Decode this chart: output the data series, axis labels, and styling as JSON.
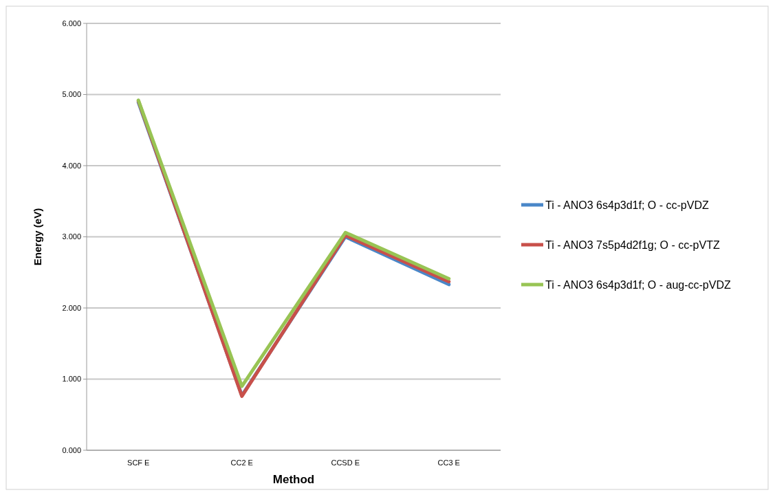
{
  "chart_data": {
    "type": "line",
    "xlabel": "Method",
    "ylabel": "Energy (eV)",
    "categories": [
      "SCF E",
      "CC2 E",
      "CCSD E",
      "CC3 E"
    ],
    "series": [
      {
        "name": "Ti - ANO3 6s4p3d1f; O - cc-pVDZ",
        "color": "#4a87c8",
        "values": [
          4.89,
          0.77,
          3.0,
          2.33
        ]
      },
      {
        "name": "Ti - ANO3 7s5p4d2f1g; O - cc-pVTZ",
        "color": "#c8504a",
        "values": [
          4.91,
          0.76,
          3.02,
          2.37
        ]
      },
      {
        "name": "Ti - ANO3 6s4p3d1f; O - aug-cc-pVDZ",
        "color": "#98c454",
        "values": [
          4.92,
          0.9,
          3.06,
          2.41
        ]
      }
    ],
    "ylim": [
      0,
      6
    ],
    "yticks": [
      {
        "value": 0,
        "label": "0.000"
      },
      {
        "value": 1,
        "label": "1.000"
      },
      {
        "value": 2,
        "label": "2.000"
      },
      {
        "value": 3,
        "label": "3.000"
      },
      {
        "value": 4,
        "label": "4.000"
      },
      {
        "value": 5,
        "label": "5.000"
      },
      {
        "value": 6,
        "label": "6.000"
      }
    ],
    "grid": "y",
    "legend": "right",
    "marker": "none",
    "line_style": "solid"
  }
}
